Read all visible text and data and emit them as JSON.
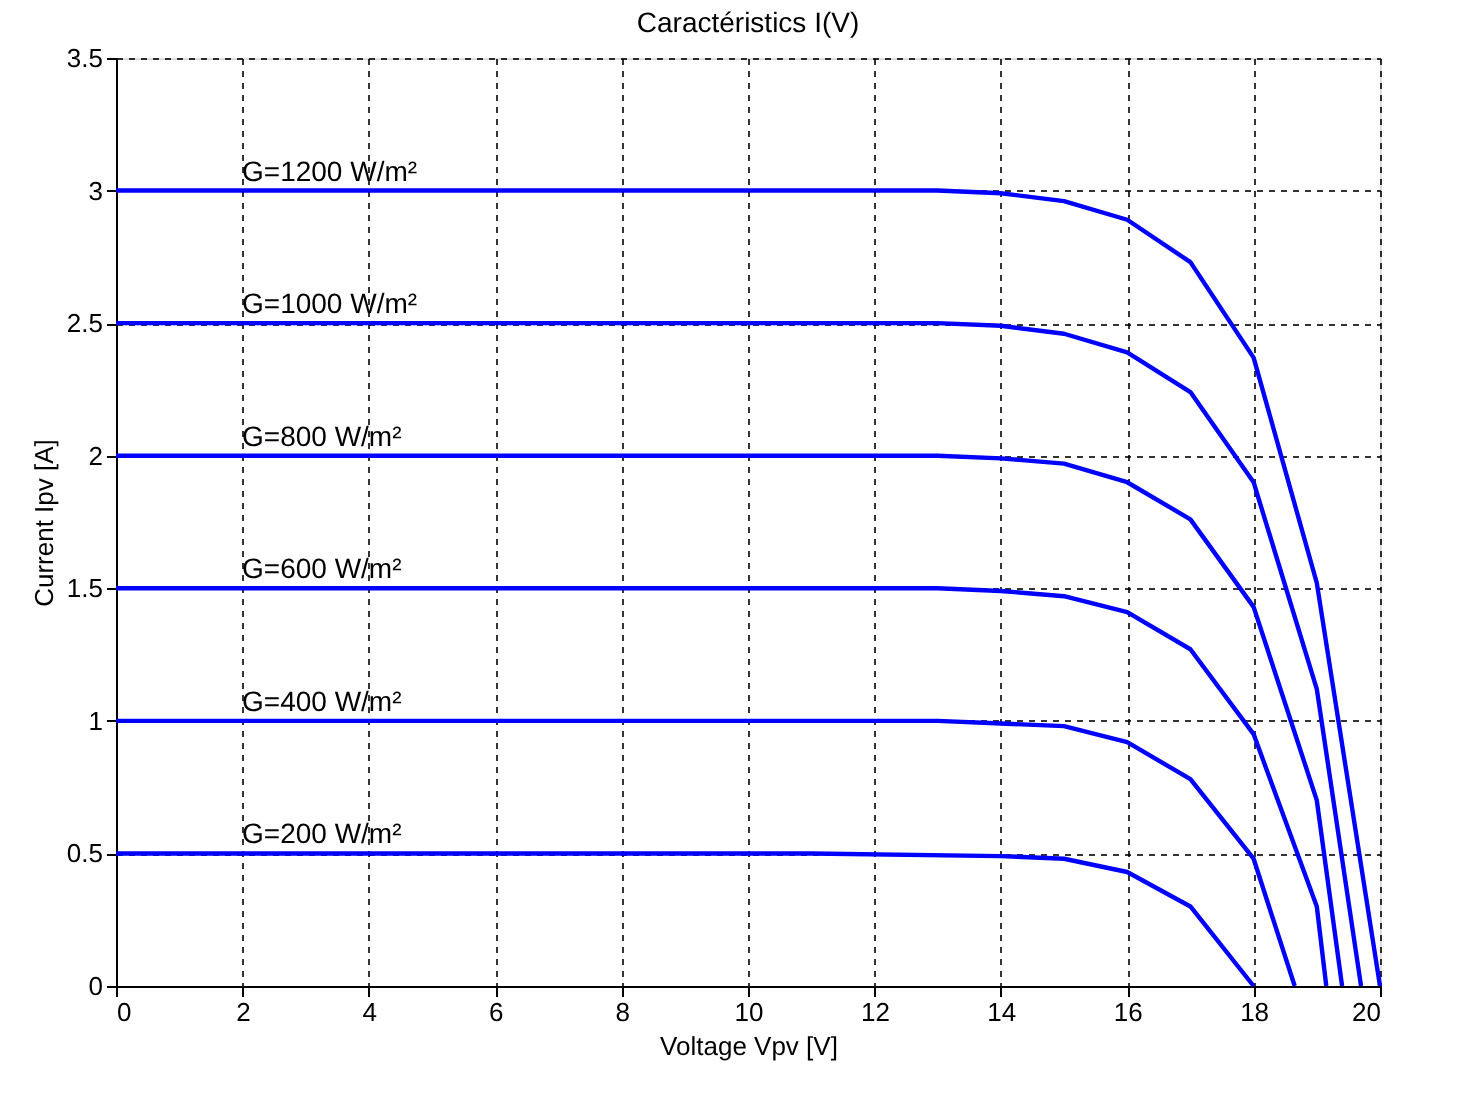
{
  "chart_data": {
    "type": "line",
    "title": "Caractéristics I(V)",
    "xlabel": "Voltage Vpv [V]",
    "ylabel": "Current Ipv [A]",
    "xlim": [
      0,
      20
    ],
    "xticks": [
      0,
      2,
      4,
      6,
      8,
      10,
      12,
      14,
      16,
      18,
      20
    ],
    "ylim": [
      0,
      3.5
    ],
    "yticks": [
      0,
      0.5,
      1,
      1.5,
      2,
      2.5,
      3,
      3.5
    ],
    "grid": true,
    "marker": "none",
    "line_style": "solid",
    "series": [
      {
        "name": "G=1200 W/m²",
        "color": "#0000ff",
        "x": [
          0,
          13,
          14,
          15,
          16,
          17,
          18,
          19,
          20
        ],
        "values": [
          3.0,
          3.0,
          2.99,
          2.96,
          2.89,
          2.73,
          2.37,
          1.52,
          0
        ]
      },
      {
        "name": "G=1000 W/m²",
        "color": "#0000ff",
        "x": [
          0,
          13,
          14,
          15,
          16,
          17,
          18,
          19,
          19.7
        ],
        "values": [
          2.5,
          2.5,
          2.49,
          2.46,
          2.39,
          2.24,
          1.9,
          1.12,
          0
        ]
      },
      {
        "name": "G=800 W/m²",
        "color": "#0000ff",
        "x": [
          0,
          13,
          14,
          15,
          16,
          17,
          18,
          19,
          19.4
        ],
        "values": [
          2.0,
          2.0,
          1.99,
          1.97,
          1.9,
          1.76,
          1.43,
          0.7,
          0
        ]
      },
      {
        "name": "G=600 W/m²",
        "color": "#0000ff",
        "x": [
          0,
          13,
          14,
          15,
          16,
          17,
          18,
          19,
          19.15
        ],
        "values": [
          1.5,
          1.5,
          1.49,
          1.47,
          1.41,
          1.27,
          0.95,
          0.3,
          0
        ]
      },
      {
        "name": "G=400 W/m²",
        "color": "#0000ff",
        "x": [
          0,
          13,
          14,
          15,
          16,
          17,
          18,
          18.65
        ],
        "values": [
          1.0,
          1.0,
          0.99,
          0.98,
          0.92,
          0.78,
          0.48,
          0
        ]
      },
      {
        "name": "G=200 W/m²",
        "color": "#0000ff",
        "x": [
          0,
          11,
          14,
          15,
          16,
          17,
          18
        ],
        "values": [
          0.5,
          0.5,
          0.49,
          0.48,
          0.43,
          0.3,
          0
        ]
      }
    ]
  }
}
